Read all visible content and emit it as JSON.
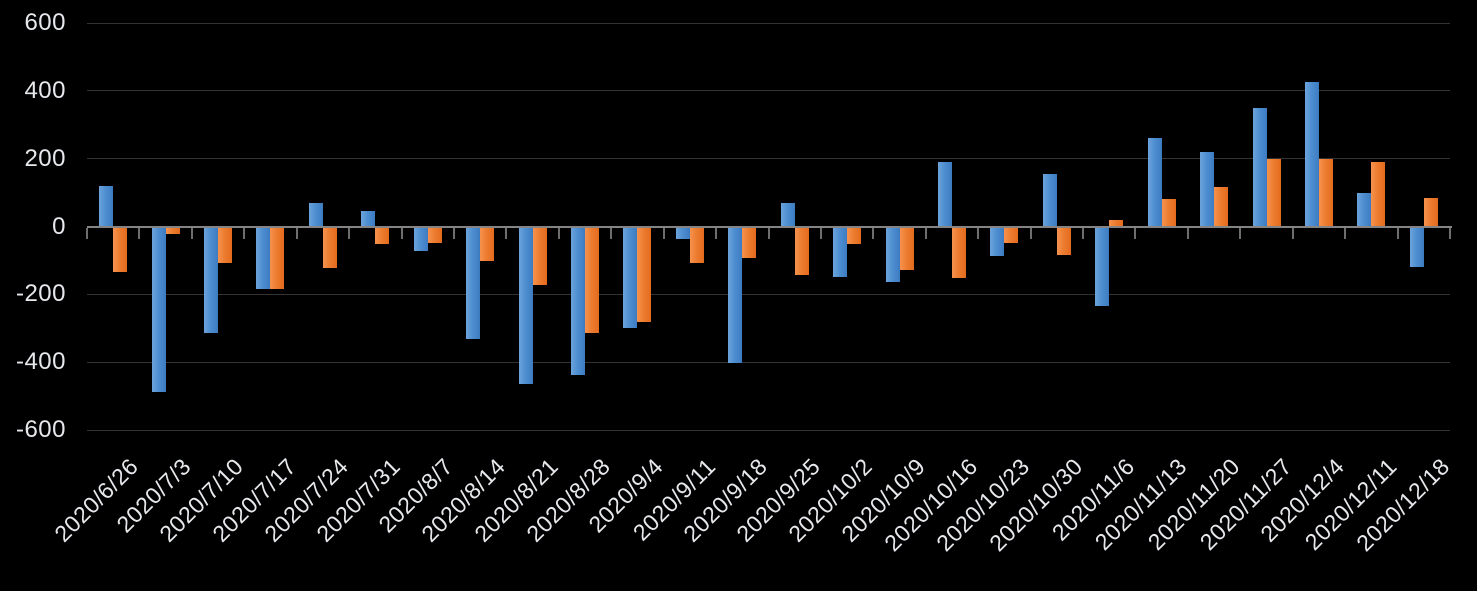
{
  "chart_data": {
    "type": "bar",
    "title": "",
    "legend": "none",
    "grid": "horizontal",
    "x_label_rotation": -45,
    "ylim": [
      -600,
      600
    ],
    "y_ticks": [
      600,
      400,
      200,
      0,
      -200,
      -400,
      -600
    ],
    "categories": [
      "2020/6/26",
      "2020/7/3",
      "2020/7/10",
      "2020/7/17",
      "2020/7/24",
      "2020/7/31",
      "2020/8/7",
      "2020/8/14",
      "2020/8/21",
      "2020/8/28",
      "2020/9/4",
      "2020/9/11",
      "2020/9/18",
      "2020/9/25",
      "2020/10/2",
      "2020/10/9",
      "2020/10/16",
      "2020/10/23",
      "2020/10/30",
      "2020/11/6",
      "2020/11/13",
      "2020/11/20",
      "2020/11/27",
      "2020/12/4",
      "2020/12/11",
      "2020/12/18"
    ],
    "series": [
      {
        "name": "blue",
        "color": "#4E8FD1",
        "gradient": [
          "#6CA3DB",
          "#3D7BC0"
        ],
        "values": [
          120,
          -485,
          -310,
          -180,
          70,
          45,
          -70,
          -330,
          -460,
          -435,
          -295,
          -35,
          -400,
          70,
          -145,
          -160,
          190,
          -85,
          155,
          -230,
          260,
          220,
          350,
          425,
          100,
          -115
        ]
      },
      {
        "name": "orange",
        "color": "#ED7D31",
        "gradient": [
          "#F6924E",
          "#E36A1C"
        ],
        "values": [
          -130,
          -20,
          -105,
          -180,
          -120,
          -50,
          -45,
          -100,
          -170,
          -310,
          -280,
          -105,
          -90,
          -140,
          -50,
          -125,
          -150,
          -45,
          -80,
          20,
          80,
          115,
          200,
          200,
          190,
          85
        ]
      }
    ],
    "colors": {
      "background": "#000000",
      "text": "#E6E8EC",
      "gridline": "#333333",
      "axis_line": "#848484",
      "tick": "#6E6E6E"
    }
  }
}
